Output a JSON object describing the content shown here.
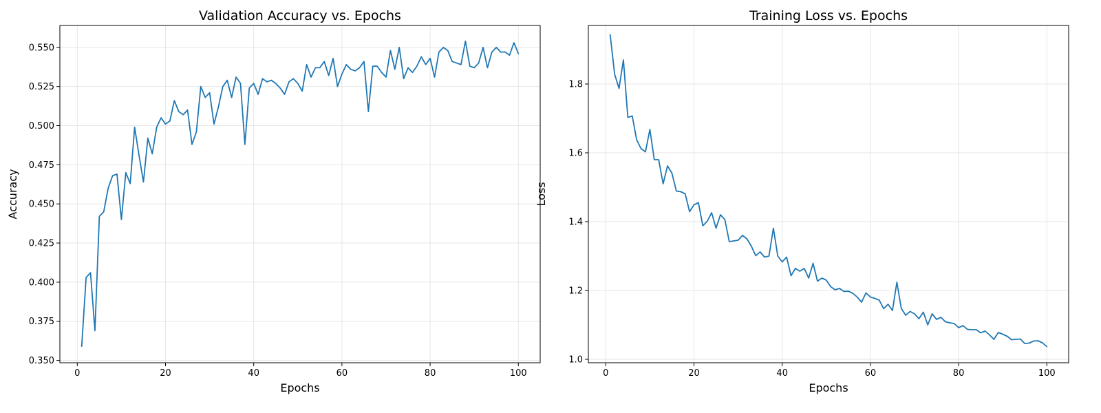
{
  "chart_data": [
    {
      "type": "line",
      "title": "Validation Accuracy vs. Epochs",
      "xlabel": "Epochs",
      "ylabel": "Accuracy",
      "xlim": [
        -3.95,
        104.95
      ],
      "ylim": [
        0.3485,
        0.564
      ],
      "xticks": [
        0,
        20,
        40,
        60,
        80,
        100
      ],
      "yticks": [
        0.35,
        0.375,
        0.4,
        0.425,
        0.45,
        0.475,
        0.5,
        0.525,
        0.55
      ],
      "tick_decimals": 3,
      "grid": true,
      "color": "#1f77b4",
      "x": [
        1,
        2,
        3,
        4,
        5,
        6,
        7,
        8,
        9,
        10,
        11,
        12,
        13,
        14,
        15,
        16,
        17,
        18,
        19,
        20,
        21,
        22,
        23,
        24,
        25,
        26,
        27,
        28,
        29,
        30,
        31,
        32,
        33,
        34,
        35,
        36,
        37,
        38,
        39,
        40,
        41,
        42,
        43,
        44,
        45,
        46,
        47,
        48,
        49,
        50,
        51,
        52,
        53,
        54,
        55,
        56,
        57,
        58,
        59,
        60,
        61,
        62,
        63,
        64,
        65,
        66,
        67,
        68,
        69,
        70,
        71,
        72,
        73,
        74,
        75,
        76,
        77,
        78,
        79,
        80,
        81,
        82,
        83,
        84,
        85,
        86,
        87,
        88,
        89,
        90,
        91,
        92,
        93,
        94,
        95,
        96,
        97,
        98,
        99,
        100
      ],
      "y": [
        0.359,
        0.403,
        0.406,
        0.369,
        0.442,
        0.445,
        0.46,
        0.468,
        0.469,
        0.44,
        0.47,
        0.463,
        0.499,
        0.481,
        0.464,
        0.492,
        0.482,
        0.499,
        0.505,
        0.501,
        0.503,
        0.516,
        0.509,
        0.507,
        0.51,
        0.488,
        0.496,
        0.525,
        0.518,
        0.521,
        0.501,
        0.512,
        0.525,
        0.529,
        0.518,
        0.531,
        0.527,
        0.488,
        0.524,
        0.527,
        0.52,
        0.53,
        0.528,
        0.529,
        0.527,
        0.524,
        0.52,
        0.528,
        0.53,
        0.527,
        0.522,
        0.539,
        0.531,
        0.537,
        0.537,
        0.541,
        0.532,
        0.543,
        0.525,
        0.533,
        0.539,
        0.536,
        0.535,
        0.537,
        0.541,
        0.509,
        0.538,
        0.538,
        0.534,
        0.531,
        0.548,
        0.536,
        0.55,
        0.53,
        0.537,
        0.534,
        0.538,
        0.544,
        0.539,
        0.543,
        0.531,
        0.547,
        0.55,
        0.548,
        0.541,
        0.54,
        0.539,
        0.554,
        0.538,
        0.537,
        0.54,
        0.55,
        0.537,
        0.547,
        0.55,
        0.547,
        0.547,
        0.545,
        0.553,
        0.546
      ]
    },
    {
      "type": "line",
      "title": "Training Loss vs. Epochs",
      "xlabel": "Epochs",
      "ylabel": "Loss",
      "xlim": [
        -3.95,
        104.95
      ],
      "ylim": [
        0.99,
        1.97
      ],
      "xticks": [
        0,
        20,
        40,
        60,
        80,
        100
      ],
      "yticks": [
        1.0,
        1.2,
        1.4,
        1.6,
        1.8
      ],
      "tick_decimals": 1,
      "grid": true,
      "color": "#1f77b4",
      "x": [
        1,
        2,
        3,
        4,
        5,
        6,
        7,
        8,
        9,
        10,
        11,
        12,
        13,
        14,
        15,
        16,
        17,
        18,
        19,
        20,
        21,
        22,
        23,
        24,
        25,
        26,
        27,
        28,
        29,
        30,
        31,
        32,
        33,
        34,
        35,
        36,
        37,
        38,
        39,
        40,
        41,
        42,
        43,
        44,
        45,
        46,
        47,
        48,
        49,
        50,
        51,
        52,
        53,
        54,
        55,
        56,
        57,
        58,
        59,
        60,
        61,
        62,
        63,
        64,
        65,
        66,
        67,
        68,
        69,
        70,
        71,
        72,
        73,
        74,
        75,
        76,
        77,
        78,
        79,
        80,
        81,
        82,
        83,
        84,
        85,
        86,
        87,
        88,
        89,
        90,
        91,
        92,
        93,
        94,
        95,
        96,
        97,
        98,
        99,
        100
      ],
      "y": [
        1.943,
        1.829,
        1.787,
        1.87,
        1.703,
        1.707,
        1.638,
        1.612,
        1.603,
        1.668,
        1.58,
        1.58,
        1.51,
        1.562,
        1.541,
        1.489,
        1.487,
        1.481,
        1.429,
        1.449,
        1.455,
        1.388,
        1.401,
        1.426,
        1.381,
        1.42,
        1.406,
        1.342,
        1.344,
        1.346,
        1.36,
        1.35,
        1.329,
        1.301,
        1.312,
        1.297,
        1.3,
        1.381,
        1.3,
        1.283,
        1.297,
        1.243,
        1.264,
        1.256,
        1.264,
        1.236,
        1.279,
        1.227,
        1.236,
        1.23,
        1.211,
        1.202,
        1.206,
        1.197,
        1.198,
        1.192,
        1.181,
        1.166,
        1.193,
        1.181,
        1.177,
        1.172,
        1.147,
        1.16,
        1.142,
        1.224,
        1.148,
        1.128,
        1.139,
        1.132,
        1.118,
        1.137,
        1.1,
        1.132,
        1.116,
        1.122,
        1.109,
        1.106,
        1.104,
        1.092,
        1.098,
        1.087,
        1.086,
        1.086,
        1.077,
        1.082,
        1.071,
        1.058,
        1.078,
        1.073,
        1.067,
        1.057,
        1.058,
        1.059,
        1.046,
        1.047,
        1.053,
        1.054,
        1.048,
        1.037
      ]
    }
  ]
}
